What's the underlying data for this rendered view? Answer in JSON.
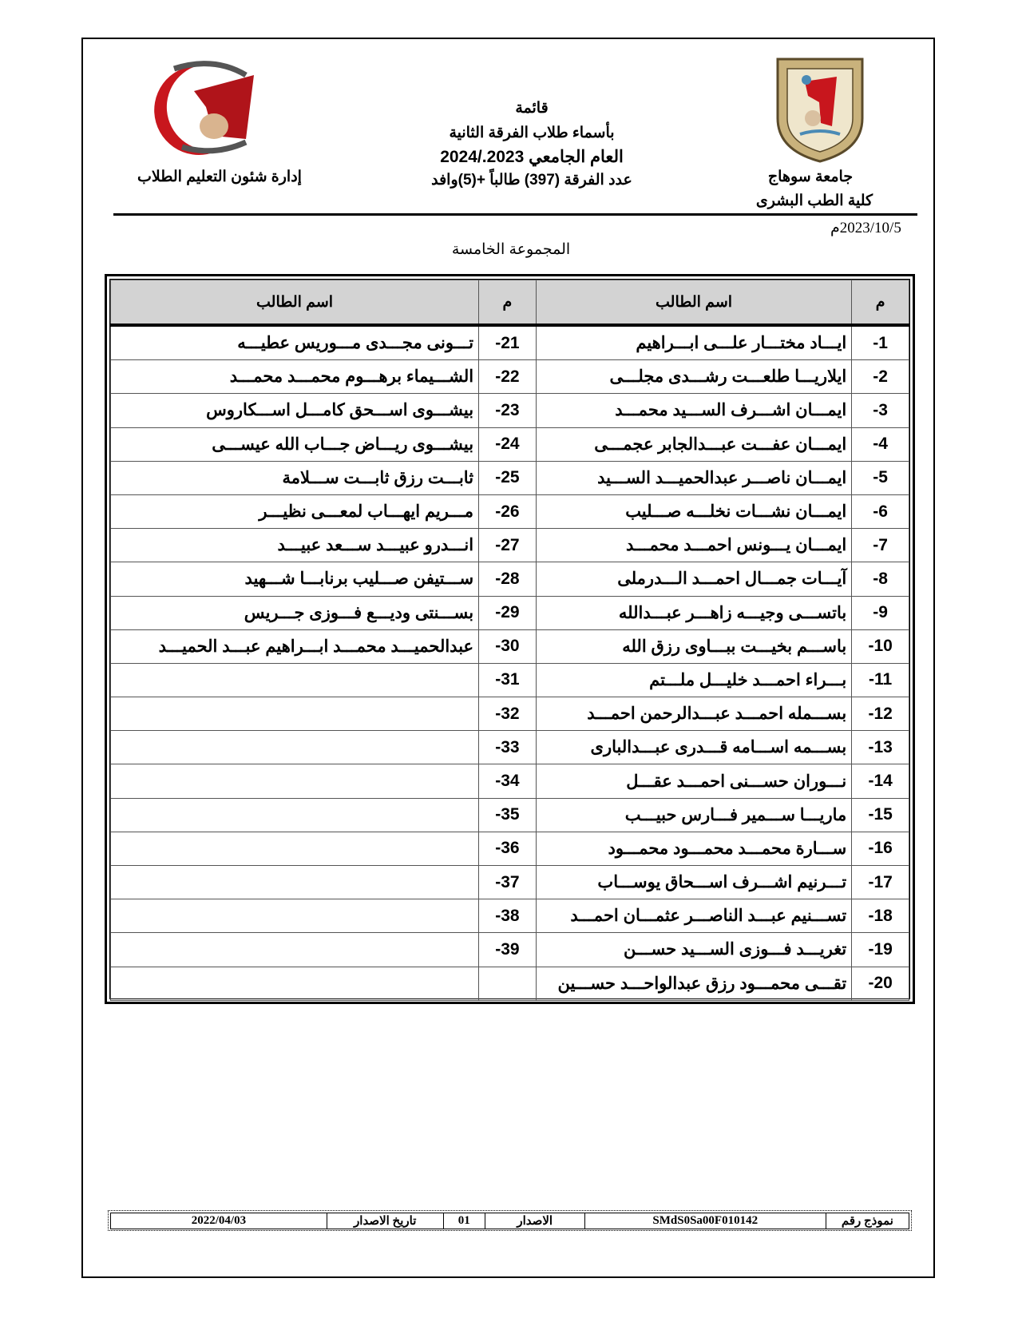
{
  "header": {
    "university": "جامعة سوهاج",
    "faculty": "كلية الطب البشرى",
    "department": "إدارة شئون التعليم الطلاب",
    "title_lines": [
      "قائمة",
      "بأسماء طلاب الفرقة الثانية",
      "العام الجامعي 2023./2024",
      "عدد الفرقة (397) طالباً +(5)وافد"
    ],
    "date": "2023/10/5م",
    "group_title": "المجموعة الخامسة",
    "logo_right_text": "جامعة سوهاج",
    "logo_left_text": "جامعة سوهاج كلية الطب"
  },
  "table": {
    "col_num": "م",
    "col_name": "اسم الطالب",
    "right": [
      {
        "n": "-1",
        "name": "ايـــاد مختـــار علـــى ابـــراهيم"
      },
      {
        "n": "-2",
        "name": "ايلاريـــا طلعـــت رشـــدى مجلـــى"
      },
      {
        "n": "-3",
        "name": "ايمـــان اشـــرف الســـيد محمـــد"
      },
      {
        "n": "-4",
        "name": "ايمـــان عفـــت عبـــدالجابر عجمـــى"
      },
      {
        "n": "-5",
        "name": "ايمـــان ناصـــر عبدالحميـــد الســـيد"
      },
      {
        "n": "-6",
        "name": "ايمـــان نشـــات نخلـــه صـــليب"
      },
      {
        "n": "-7",
        "name": "ايمـــان يـــونس احمـــد محمـــد"
      },
      {
        "n": "-8",
        "name": "آيـــات جمـــال احمـــد الـــدرملى"
      },
      {
        "n": "-9",
        "name": "باتســـى وجيـــه زاهـــر عبـــدالله"
      },
      {
        "n": "-10",
        "name": "باســـم بخيـــت ببـــاوى رزق الله"
      },
      {
        "n": "-11",
        "name": "بـــراء احمـــد خليـــل ملـــتم"
      },
      {
        "n": "-12",
        "name": "بســـمله احمـــد عبـــدالرحمن احمـــد"
      },
      {
        "n": "-13",
        "name": "بســـمه اســـامه قـــدرى عبـــدالبارى"
      },
      {
        "n": "-14",
        "name": "نـــوران حســـنى احمـــد عقـــل"
      },
      {
        "n": "-15",
        "name": "ماريـــا ســـمير فـــارس حبيـــب"
      },
      {
        "n": "-16",
        "name": "ســـارة محمـــد محمـــود محمـــود"
      },
      {
        "n": "-17",
        "name": "تـــرنيم اشـــرف اســـحاق يوســـاب"
      },
      {
        "n": "-18",
        "name": "تســـنيم عبـــد الناصـــر عثمـــان احمـــد"
      },
      {
        "n": "-19",
        "name": "تغريـــد فـــوزى الســـيد حســـن"
      },
      {
        "n": "-20",
        "name": "تقـــى محمـــود رزق عبدالواحـــد حســـين"
      }
    ],
    "left": [
      {
        "n": "-21",
        "name": "تـــونى مجـــدى مـــوريس عطيـــه"
      },
      {
        "n": "-22",
        "name": "الشـــيماء برهـــوم محمـــد محمـــد"
      },
      {
        "n": "-23",
        "name": "بيشـــوى اســـحق كامـــل اســـكاروس"
      },
      {
        "n": "-24",
        "name": "بيشـــوى ريـــاض جـــاب الله عيســـى"
      },
      {
        "n": "-25",
        "name": "ثابـــت رزق ثابـــت ســـلامة"
      },
      {
        "n": "-26",
        "name": "مـــريم ايهـــاب لمعـــى نظيـــر"
      },
      {
        "n": "-27",
        "name": "انـــدرو عبيـــد ســـعد عبيـــد"
      },
      {
        "n": "-28",
        "name": "ســـتيفن صـــليب برنابـــا شـــهيد"
      },
      {
        "n": "-29",
        "name": "بســـنتى وديـــع فـــوزى جـــريس"
      },
      {
        "n": "-30",
        "name": "عبدالحميـــد محمـــد ابـــراهيم عبـــد الحميـــد"
      },
      {
        "n": "-31",
        "name": ""
      },
      {
        "n": "-32",
        "name": ""
      },
      {
        "n": "-33",
        "name": ""
      },
      {
        "n": "-34",
        "name": ""
      },
      {
        "n": "-35",
        "name": ""
      },
      {
        "n": "-36",
        "name": ""
      },
      {
        "n": "-37",
        "name": ""
      },
      {
        "n": "-38",
        "name": ""
      },
      {
        "n": "-39",
        "name": ""
      },
      {
        "n": "",
        "name": ""
      }
    ]
  },
  "footer": {
    "form_label": "نموذج رقم",
    "form_code": "SMdS0Sa00F010142",
    "edition_label": "الاصدار",
    "edition": "01",
    "issue_date_label": "تاريخ الاصدار",
    "issue_date": "2022/04/03"
  },
  "colors": {
    "logo_red": "#c8161d",
    "logo_gold": "#c9b27c",
    "header_gray": "#d3d3d3"
  }
}
